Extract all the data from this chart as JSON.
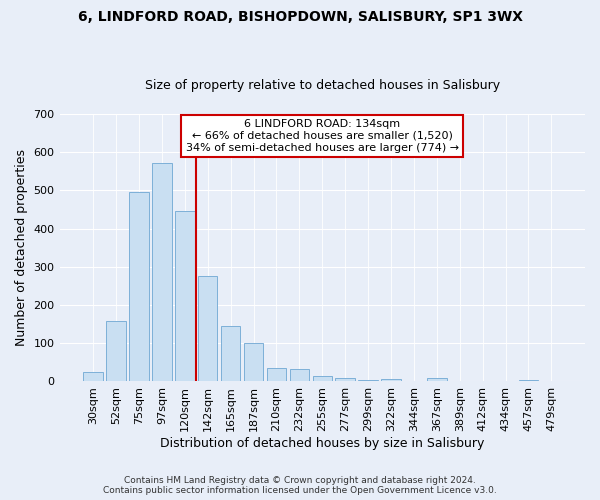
{
  "title": "6, LINDFORD ROAD, BISHOPDOWN, SALISBURY, SP1 3WX",
  "subtitle": "Size of property relative to detached houses in Salisbury",
  "xlabel": "Distribution of detached houses by size in Salisbury",
  "ylabel": "Number of detached properties",
  "bar_labels": [
    "30sqm",
    "52sqm",
    "75sqm",
    "97sqm",
    "120sqm",
    "142sqm",
    "165sqm",
    "187sqm",
    "210sqm",
    "232sqm",
    "255sqm",
    "277sqm",
    "299sqm",
    "322sqm",
    "344sqm",
    "367sqm",
    "389sqm",
    "412sqm",
    "434sqm",
    "457sqm",
    "479sqm"
  ],
  "bar_heights": [
    25,
    157,
    497,
    572,
    447,
    275,
    145,
    100,
    35,
    33,
    15,
    10,
    3,
    6,
    0,
    8,
    0,
    0,
    0,
    5,
    0
  ],
  "bar_color": "#c9dff2",
  "bar_edge_color": "#7db0d8",
  "vline_color": "#cc0000",
  "vline_x_index": 5,
  "annotation_title": "6 LINDFORD ROAD: 134sqm",
  "annotation_line1": "← 66% of detached houses are smaller (1,520)",
  "annotation_line2": "34% of semi-detached houses are larger (774) →",
  "annotation_box_color": "white",
  "annotation_box_edge": "#cc0000",
  "ylim": [
    0,
    700
  ],
  "yticks": [
    0,
    100,
    200,
    300,
    400,
    500,
    600,
    700
  ],
  "footer1": "Contains HM Land Registry data © Crown copyright and database right 2024.",
  "footer2": "Contains public sector information licensed under the Open Government Licence v3.0.",
  "bg_color": "#e8eef8",
  "plot_bg_color": "#e8eef8",
  "title_fontsize": 10,
  "subtitle_fontsize": 9,
  "ylabel_fontsize": 9,
  "xlabel_fontsize": 9,
  "tick_fontsize": 8,
  "annotation_fontsize": 8,
  "footer_fontsize": 6.5
}
